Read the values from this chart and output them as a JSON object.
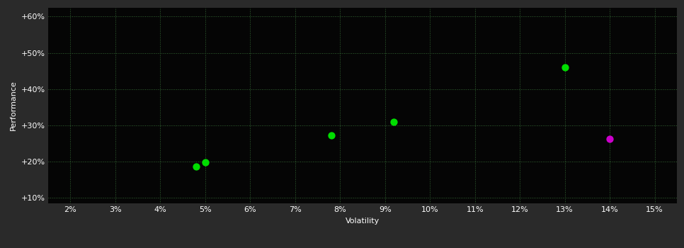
{
  "background_color": "#2a2a2a",
  "plot_bg_color": "#050505",
  "grid_color": "#336633",
  "tick_color": "#ffffff",
  "axis_label_color": "#ffffff",
  "xlabel": "Volatility",
  "ylabel": "Performance",
  "xlim": [
    0.015,
    0.155
  ],
  "ylim": [
    0.085,
    0.625
  ],
  "xticks": [
    0.02,
    0.03,
    0.04,
    0.05,
    0.06,
    0.07,
    0.08,
    0.09,
    0.1,
    0.11,
    0.12,
    0.13,
    0.14,
    0.15
  ],
  "yticks": [
    0.1,
    0.2,
    0.3,
    0.4,
    0.5,
    0.6
  ],
  "ytick_labels": [
    "+10%",
    "+20%",
    "+30%",
    "+40%",
    "+50%",
    "+60%"
  ],
  "xtick_labels": [
    "2%",
    "3%",
    "4%",
    "5%",
    "6%",
    "7%",
    "8%",
    "9%",
    "10%",
    "11%",
    "12%",
    "13%",
    "14%",
    "15%"
  ],
  "green_points": [
    [
      0.048,
      0.186
    ],
    [
      0.05,
      0.198
    ],
    [
      0.078,
      0.272
    ],
    [
      0.092,
      0.31
    ],
    [
      0.13,
      0.459
    ]
  ],
  "magenta_points": [
    [
      0.14,
      0.263
    ]
  ],
  "green_color": "#00dd00",
  "magenta_color": "#cc00cc",
  "marker_size": 55,
  "figsize": [
    9.66,
    3.5
  ],
  "dpi": 100
}
